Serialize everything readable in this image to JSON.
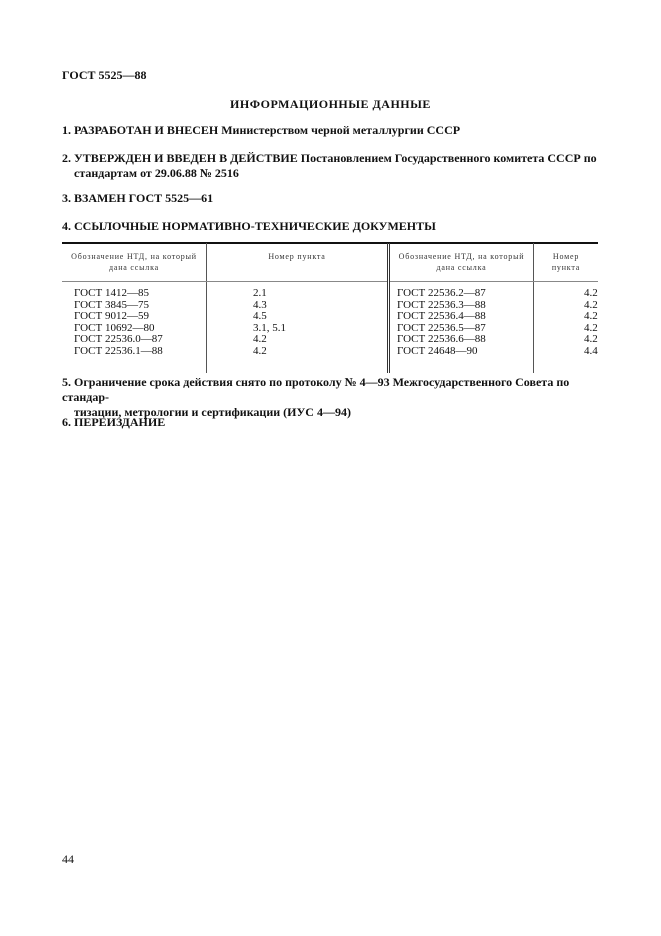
{
  "header": {
    "doc_code": "ГОСТ 5525—88"
  },
  "title": "ИНФОРМАЦИОННЫЕ ДАННЫЕ",
  "items": [
    {
      "num": "1.",
      "lead": "РАЗРАБОТАН И ВНЕСЕН",
      "text": "Министерством черной металлургии СССР"
    },
    {
      "num": "2.",
      "lead": "УТВЕРЖДЕН И ВВЕДЕН В ДЕЙСТВИЕ",
      "text": "Постановлением Государственного комитета СССР по",
      "line2": "стандартам от 29.06.88 № 2516"
    },
    {
      "num": "3.",
      "lead": "ВЗАМЕН ГОСТ 5525—61"
    },
    {
      "num": "4.",
      "lead": "ССЫЛОЧНЫЕ НОРМАТИВНО-ТЕХНИЧЕСКИЕ ДОКУМЕНТЫ"
    },
    {
      "num": "5.",
      "text": "Ограничение срока действия снято по протоколу № 4—93 Межгосударственного Совета по стандар-",
      "line2": "тизации, метрологии и сертификации (ИУС 4—94)"
    },
    {
      "num": "6.",
      "lead": "ПЕРЕИЗДАНИЕ"
    }
  ],
  "table": {
    "headers": [
      "Обозначение НТД, на который дана ссылка",
      "Номер пункта",
      "Обозначение НТД, на который дана ссылка",
      "Номер пункта"
    ],
    "rows": [
      [
        "ГОСТ 1412—85",
        "2.1",
        "ГОСТ 22536.2—87",
        "4.2"
      ],
      [
        "ГОСТ 3845—75",
        "4.3",
        "ГОСТ 22536.3—88",
        "4.2"
      ],
      [
        "ГОСТ 9012—59",
        "4.5",
        "ГОСТ 22536.4—88",
        "4.2"
      ],
      [
        "ГОСТ 10692—80",
        "3.1, 5.1",
        "ГОСТ 22536.5—87",
        "4.2"
      ],
      [
        "ГОСТ 22536.0—87",
        "4.2",
        "ГОСТ 22536.6—88",
        "4.2"
      ],
      [
        "ГОСТ 22536.1—88",
        "4.2",
        "ГОСТ 24648—90",
        "4.4"
      ]
    ]
  },
  "page_number": "44"
}
